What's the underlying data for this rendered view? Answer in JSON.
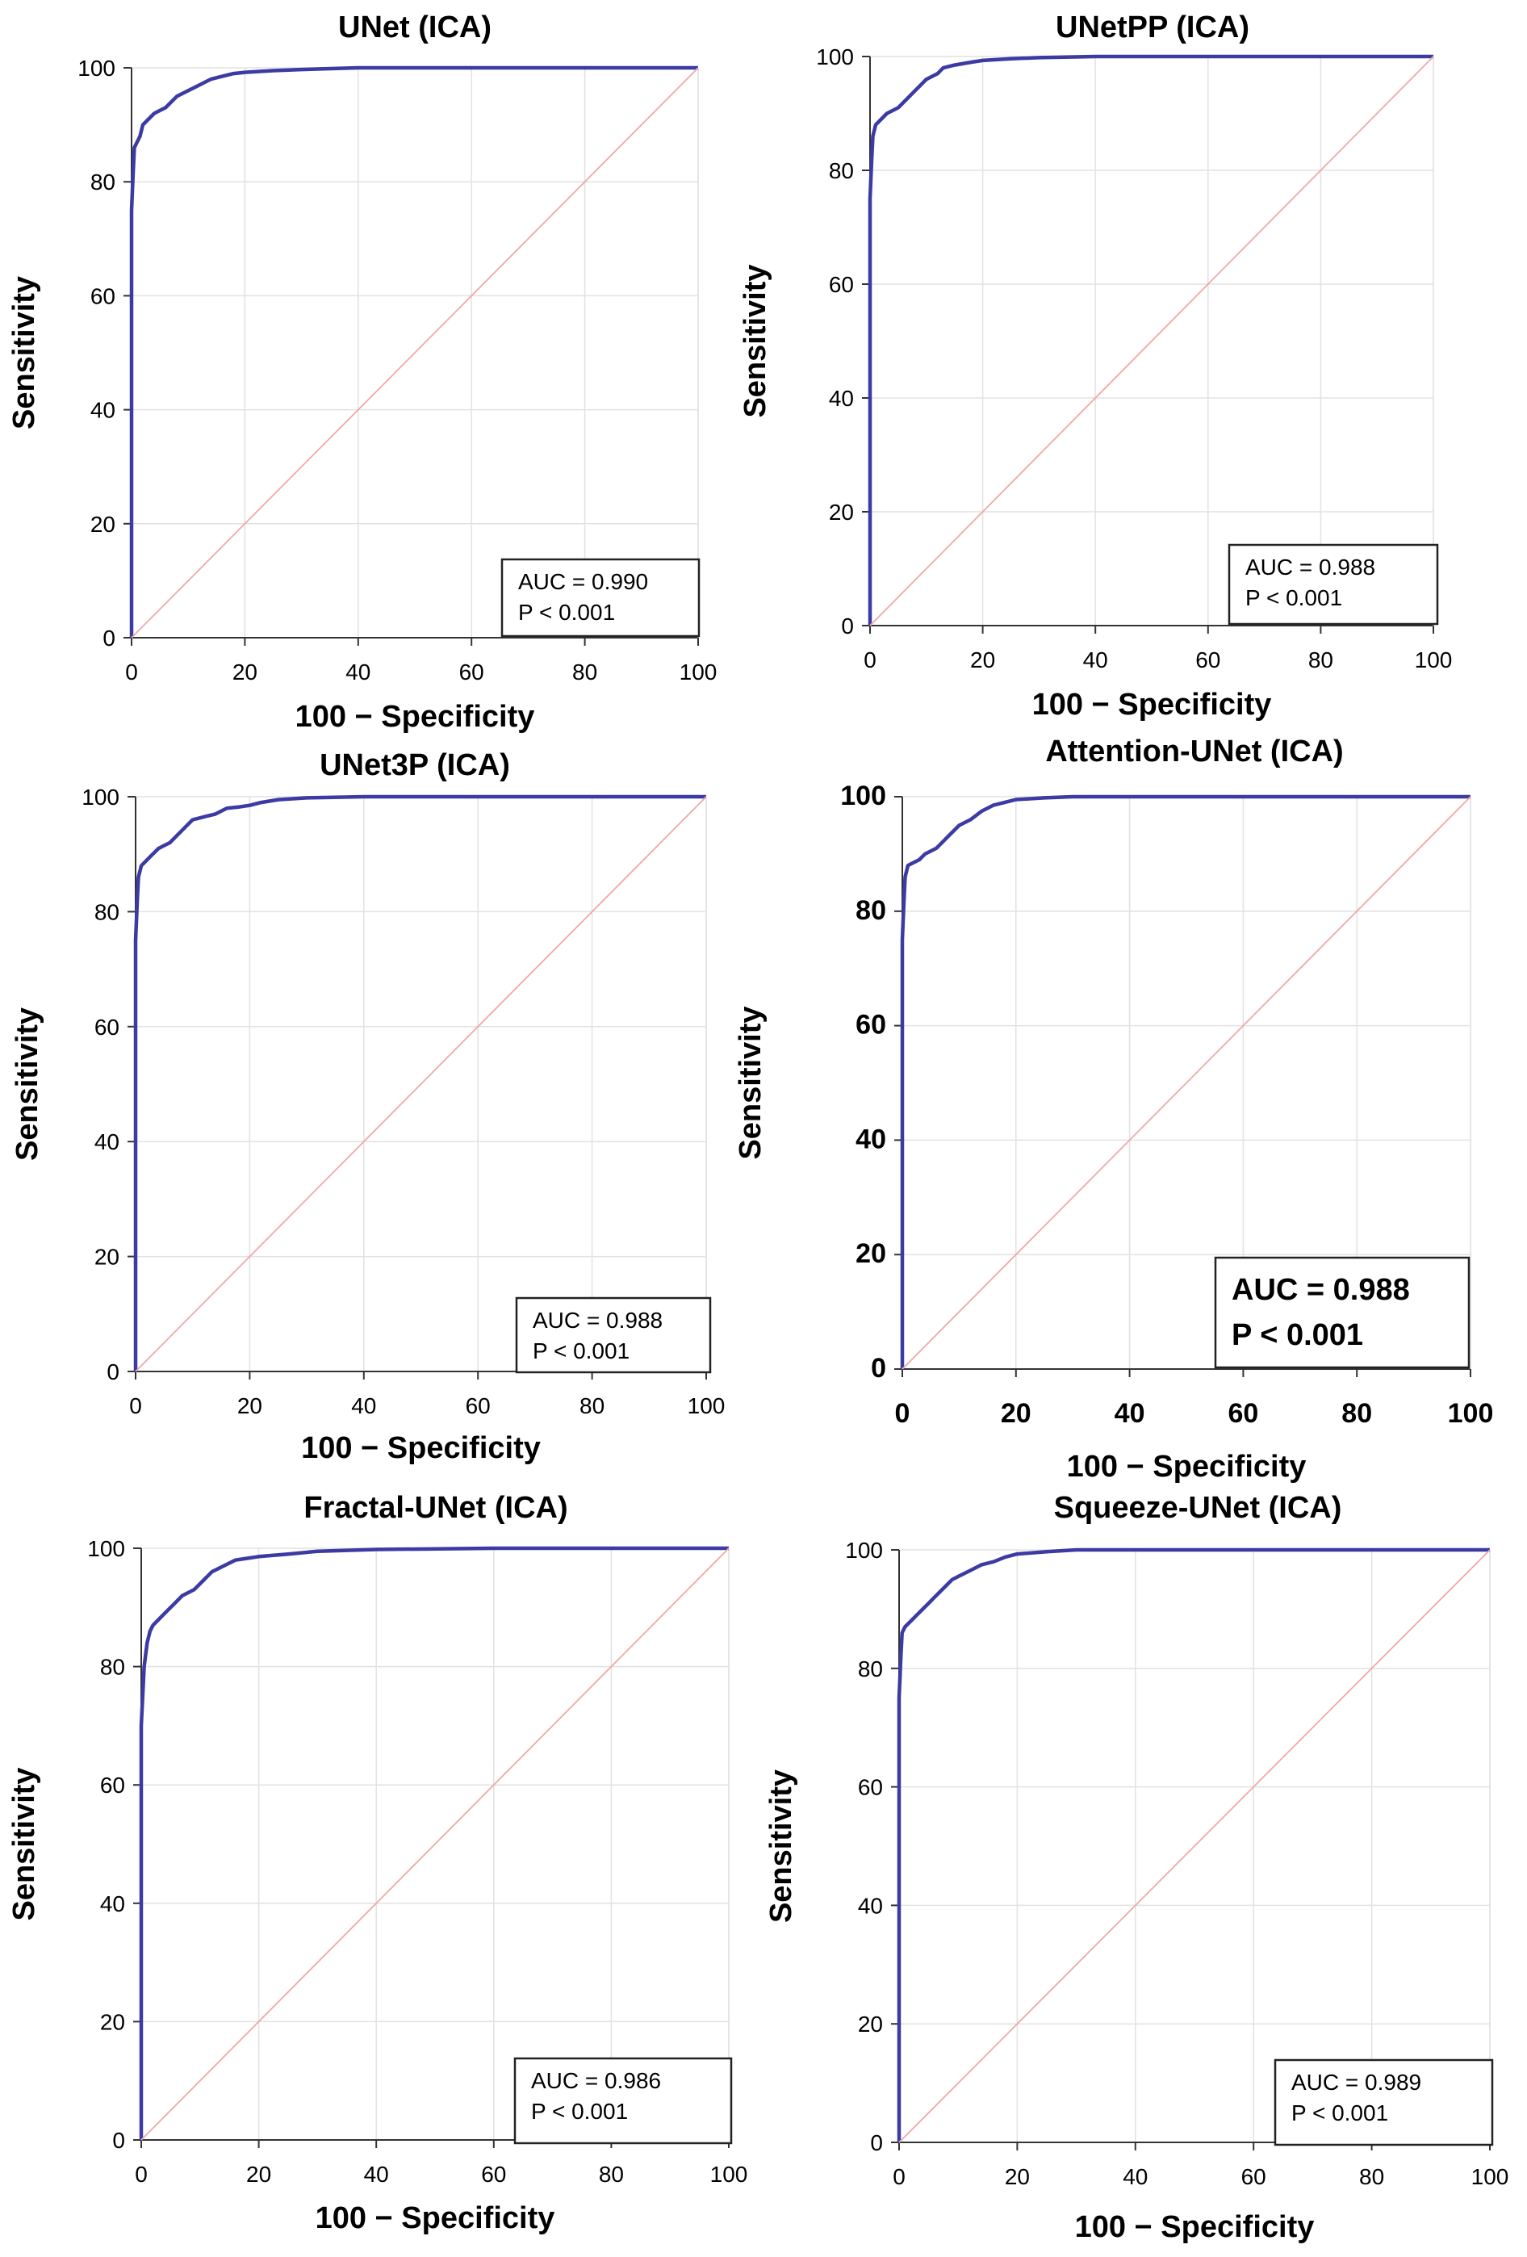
{
  "chart_data": [
    {
      "type": "line",
      "title": "UNet  (ICA)",
      "xlabel": "100 − Specificity",
      "ylabel": "Sensitivity",
      "xlim": [
        0,
        100
      ],
      "ylim": [
        0,
        100
      ],
      "xticks": [
        "0",
        "20",
        "40",
        "60",
        "80",
        "100"
      ],
      "yticks": [
        "0",
        "20",
        "40",
        "60",
        "80",
        "100"
      ],
      "grid": true,
      "series": [
        {
          "name": "ROC",
          "color": "#3b3ba3",
          "x": [
            0,
            0,
            0.3,
            0.5,
            1,
            1.5,
            2,
            3,
            4,
            5,
            6,
            7,
            8,
            9,
            10,
            12,
            14,
            16,
            18,
            20,
            25,
            30,
            40,
            60,
            80,
            100
          ],
          "y": [
            0,
            75,
            82,
            86,
            87,
            88,
            90,
            91,
            92,
            92.5,
            93,
            94,
            95,
            95.5,
            96,
            97,
            98,
            98.5,
            99,
            99.2,
            99.5,
            99.7,
            100,
            100,
            100,
            100
          ]
        },
        {
          "name": "Reference",
          "color": "#f0a8a8",
          "x": [
            0,
            100
          ],
          "y": [
            0,
            100
          ]
        }
      ],
      "annotations": [
        "AUC = 0.990",
        "P < 0.001"
      ]
    },
    {
      "type": "line",
      "title": "UNetPP  (ICA)",
      "xlabel": "100 − Specificity",
      "ylabel": "Sensitivity",
      "xlim": [
        0,
        100
      ],
      "ylim": [
        0,
        100
      ],
      "xticks": [
        "0",
        "20",
        "40",
        "60",
        "80",
        "100"
      ],
      "yticks": [
        "0",
        "20",
        "40",
        "60",
        "80",
        "100"
      ],
      "grid": true,
      "series": [
        {
          "name": "ROC",
          "color": "#3b3ba3",
          "x": [
            0,
            0,
            0.3,
            0.5,
            1,
            2,
            3,
            4,
            5,
            6,
            7,
            8,
            9,
            10,
            12,
            13,
            15,
            18,
            20,
            25,
            30,
            40,
            60,
            80,
            100
          ],
          "y": [
            0,
            75,
            82,
            86,
            88,
            89,
            90,
            90.5,
            91,
            92,
            93,
            94,
            95,
            96,
            97,
            98,
            98.5,
            99,
            99.3,
            99.6,
            99.8,
            100,
            100,
            100,
            100
          ]
        },
        {
          "name": "Reference",
          "color": "#f0a8a8",
          "x": [
            0,
            100
          ],
          "y": [
            0,
            100
          ]
        }
      ],
      "annotations": [
        "AUC = 0.988",
        "P < 0.001"
      ]
    },
    {
      "type": "line",
      "title": "UNet3P  (ICA)",
      "xlabel": "100 − Specificity",
      "ylabel": "Sensitivity",
      "xlim": [
        0,
        100
      ],
      "ylim": [
        0,
        100
      ],
      "xticks": [
        "0",
        "20",
        "40",
        "60",
        "80",
        "100"
      ],
      "yticks": [
        "0",
        "20",
        "40",
        "60",
        "80",
        "100"
      ],
      "grid": true,
      "series": [
        {
          "name": "ROC",
          "color": "#3b3ba3",
          "x": [
            0,
            0,
            0.3,
            0.5,
            1,
            2,
            3,
            4,
            5,
            6,
            7,
            8,
            9,
            10,
            12,
            14,
            16,
            18,
            20,
            22,
            25,
            30,
            40,
            60,
            80,
            100
          ],
          "y": [
            0,
            75,
            82,
            86,
            88,
            89,
            90,
            91,
            91.5,
            92,
            93,
            94,
            95,
            96,
            96.5,
            97,
            98,
            98.2,
            98.5,
            99,
            99.5,
            99.8,
            100,
            100,
            100,
            100
          ]
        },
        {
          "name": "Reference",
          "color": "#f0a8a8",
          "x": [
            0,
            100
          ],
          "y": [
            0,
            100
          ]
        }
      ],
      "annotations": [
        "AUC = 0.988",
        "P < 0.001"
      ]
    },
    {
      "type": "line",
      "title": "Attention-UNet (ICA)",
      "xlabel": "100 − Specificity",
      "ylabel": "Sensitivity",
      "xlim": [
        0,
        100
      ],
      "ylim": [
        0,
        100
      ],
      "xticks": [
        "0",
        "20",
        "40",
        "60",
        "80",
        "100"
      ],
      "yticks": [
        "0",
        "20",
        "40",
        "60",
        "80",
        "100"
      ],
      "grid": true,
      "series": [
        {
          "name": "ROC",
          "color": "#3b3ba3",
          "x": [
            0,
            0,
            0.3,
            0.5,
            1,
            2,
            3,
            4,
            5,
            6,
            7,
            8,
            9,
            10,
            12,
            14,
            16,
            18,
            20,
            25,
            30,
            40,
            60,
            80,
            100
          ],
          "y": [
            0,
            75,
            82,
            86,
            88,
            88.5,
            89,
            90,
            90.5,
            91,
            92,
            93,
            94,
            95,
            96,
            97.5,
            98.5,
            99,
            99.5,
            99.8,
            100,
            100,
            100,
            100,
            100
          ]
        },
        {
          "name": "Reference",
          "color": "#f0a8a8",
          "x": [
            0,
            100
          ],
          "y": [
            0,
            100
          ]
        }
      ],
      "annotations": [
        "AUC = 0.988",
        "P < 0.001"
      ]
    },
    {
      "type": "line",
      "title": "Fractal-UNet  (ICA)",
      "xlabel": "100 − Specificity",
      "ylabel": "Sensitivity",
      "xlim": [
        0,
        100
      ],
      "ylim": [
        0,
        100
      ],
      "xticks": [
        "0",
        "20",
        "40",
        "60",
        "80",
        "100"
      ],
      "yticks": [
        "0",
        "20",
        "40",
        "60",
        "80",
        "100"
      ],
      "grid": true,
      "series": [
        {
          "name": "ROC",
          "color": "#3b3ba3",
          "x": [
            0,
            0,
            0.5,
            1,
            1.5,
            2,
            3,
            4,
            5,
            6,
            7,
            8,
            9,
            10,
            12,
            14,
            16,
            18,
            20,
            25,
            30,
            40,
            60,
            80,
            100
          ],
          "y": [
            0,
            70,
            80,
            84,
            86,
            87,
            88,
            89,
            90,
            91,
            92,
            92.5,
            93,
            94,
            96,
            97,
            98,
            98.3,
            98.6,
            99,
            99.5,
            99.8,
            100,
            100,
            100
          ]
        },
        {
          "name": "Reference",
          "color": "#f0a8a8",
          "x": [
            0,
            100
          ],
          "y": [
            0,
            100
          ]
        }
      ],
      "annotations": [
        "AUC = 0.986",
        "P < 0.001"
      ]
    },
    {
      "type": "line",
      "title": "Squeeze-UNet  (ICA)",
      "xlabel": "100 − Specificity",
      "ylabel": "Sensitivity",
      "xlim": [
        0,
        100
      ],
      "ylim": [
        0,
        100
      ],
      "xticks": [
        "0",
        "20",
        "40",
        "60",
        "80",
        "100"
      ],
      "yticks": [
        "0",
        "20",
        "40",
        "60",
        "80",
        "100"
      ],
      "grid": true,
      "series": [
        {
          "name": "ROC",
          "color": "#3b3ba3",
          "x": [
            0,
            0,
            0.3,
            0.5,
            1,
            2,
            3,
            4,
            5,
            6,
            7,
            8,
            9,
            10,
            12,
            14,
            16,
            18,
            20,
            25,
            30,
            40,
            60,
            80,
            100
          ],
          "y": [
            0,
            75,
            82,
            86,
            87,
            88,
            89,
            90,
            91,
            92,
            93,
            94,
            95,
            95.5,
            96.5,
            97.5,
            98,
            98.8,
            99.3,
            99.7,
            100,
            100,
            100,
            100,
            100
          ]
        },
        {
          "name": "Reference",
          "color": "#f0a8a8",
          "x": [
            0,
            100
          ],
          "y": [
            0,
            100
          ]
        }
      ],
      "annotations": [
        "AUC = 0.989",
        "P < 0.001"
      ]
    }
  ]
}
